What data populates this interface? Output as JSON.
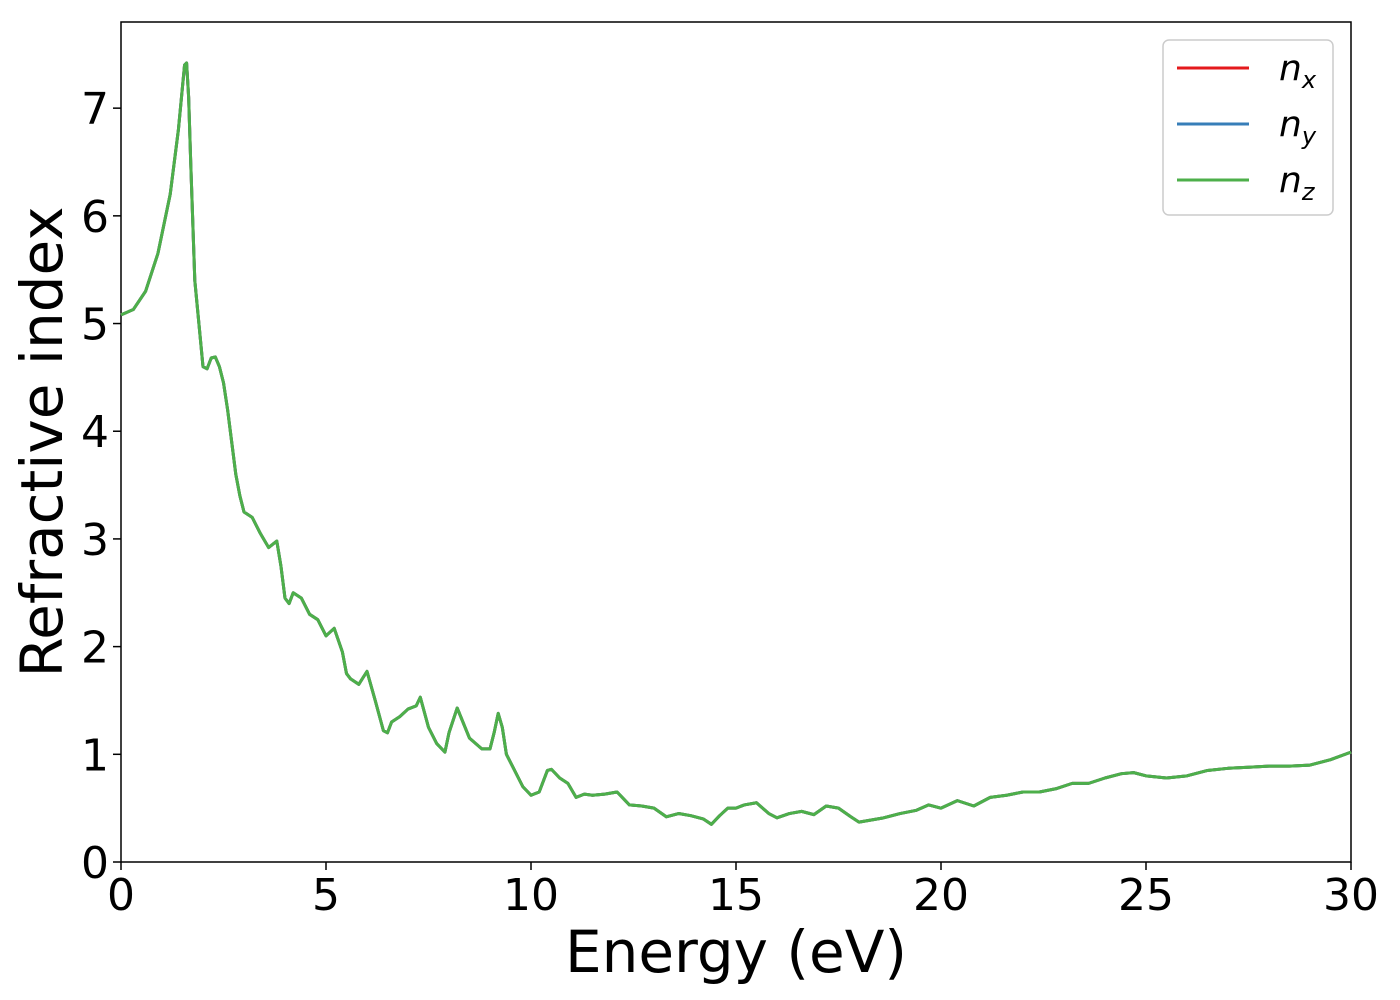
{
  "chart_data": {
    "type": "line",
    "xlabel": "Energy (eV)",
    "ylabel": "Refractive index",
    "xlim": [
      0,
      30
    ],
    "ylim": [
      0,
      7.8
    ],
    "xticks": [
      0,
      5,
      10,
      15,
      20,
      25,
      30
    ],
    "yticks": [
      0,
      1,
      2,
      3,
      4,
      5,
      6,
      7
    ],
    "grid": false,
    "legend_position": "top-right",
    "series": [
      {
        "name": "n_x",
        "label_main": "n",
        "label_sub": "x",
        "color": "#e41a1c",
        "x": [
          0,
          0.3,
          0.6,
          0.9,
          1.2,
          1.4,
          1.5,
          1.55,
          1.6,
          1.65,
          1.7,
          1.8,
          1.9,
          2.0,
          2.1,
          2.2,
          2.3,
          2.4,
          2.5,
          2.6,
          2.7,
          2.8,
          2.9,
          3.0,
          3.2,
          3.4,
          3.6,
          3.7,
          3.8,
          3.9,
          4.0,
          4.1,
          4.2,
          4.4,
          4.6,
          4.8,
          5.0,
          5.2,
          5.4,
          5.5,
          5.6,
          5.8,
          6.0,
          6.2,
          6.4,
          6.5,
          6.6,
          6.8,
          7.0,
          7.2,
          7.3,
          7.5,
          7.7,
          7.9,
          8.0,
          8.2,
          8.5,
          8.8,
          9.0,
          9.1,
          9.2,
          9.3,
          9.4,
          9.6,
          9.8,
          10.0,
          10.2,
          10.4,
          10.5,
          10.7,
          10.9,
          11.1,
          11.3,
          11.5,
          11.8,
          12.1,
          12.4,
          12.7,
          13.0,
          13.3,
          13.6,
          13.9,
          14.2,
          14.4,
          14.6,
          14.8,
          15.0,
          15.2,
          15.5,
          15.8,
          16.0,
          16.3,
          16.6,
          16.9,
          17.2,
          17.5,
          17.8,
          18.0,
          18.3,
          18.6,
          19.0,
          19.4,
          19.7,
          20.0,
          20.4,
          20.8,
          21.2,
          21.6,
          22.0,
          22.4,
          22.8,
          23.2,
          23.6,
          24.0,
          24.4,
          24.7,
          25.0,
          25.5,
          26.0,
          26.5,
          27.0,
          27.5,
          28.0,
          28.5,
          29.0,
          29.5,
          30.0
        ],
        "y": [
          5.08,
          5.13,
          5.3,
          5.65,
          6.2,
          6.8,
          7.2,
          7.4,
          7.42,
          7.1,
          6.5,
          5.4,
          5.0,
          4.6,
          4.58,
          4.68,
          4.69,
          4.6,
          4.45,
          4.2,
          3.9,
          3.6,
          3.4,
          3.25,
          3.2,
          3.05,
          2.92,
          2.95,
          2.98,
          2.75,
          2.45,
          2.4,
          2.5,
          2.45,
          2.3,
          2.25,
          2.1,
          2.17,
          1.95,
          1.75,
          1.7,
          1.65,
          1.77,
          1.5,
          1.22,
          1.2,
          1.3,
          1.35,
          1.42,
          1.45,
          1.53,
          1.25,
          1.1,
          1.02,
          1.2,
          1.43,
          1.15,
          1.05,
          1.05,
          1.2,
          1.38,
          1.25,
          1.0,
          0.85,
          0.7,
          0.62,
          0.65,
          0.85,
          0.86,
          0.78,
          0.73,
          0.6,
          0.63,
          0.62,
          0.63,
          0.65,
          0.53,
          0.52,
          0.5,
          0.42,
          0.45,
          0.43,
          0.4,
          0.35,
          0.43,
          0.5,
          0.5,
          0.53,
          0.55,
          0.45,
          0.41,
          0.45,
          0.47,
          0.44,
          0.52,
          0.5,
          0.42,
          0.37,
          0.39,
          0.41,
          0.45,
          0.48,
          0.53,
          0.5,
          0.57,
          0.52,
          0.6,
          0.62,
          0.65,
          0.65,
          0.68,
          0.73,
          0.73,
          0.78,
          0.82,
          0.83,
          0.8,
          0.78,
          0.8,
          0.85,
          0.87,
          0.88,
          0.89,
          0.89,
          0.9,
          0.95,
          1.02
        ]
      },
      {
        "name": "n_y",
        "label_main": "n",
        "label_sub": "y",
        "color": "#377eb8",
        "same_as": "n_x"
      },
      {
        "name": "n_z",
        "label_main": "n",
        "label_sub": "z",
        "color": "#4daf4a",
        "same_as": "n_x"
      }
    ]
  }
}
